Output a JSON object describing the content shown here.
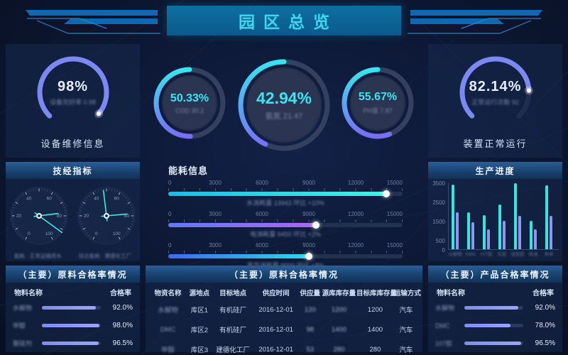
{
  "title": {
    "text": "园区总览"
  },
  "colors": {
    "accent_cyan": "#35e2ef",
    "accent_periwinkle": "#7d89f3",
    "banner_bg": "#0e6fa2",
    "banner_text": "#3ad9f0"
  },
  "left_top": {
    "value": "98%",
    "subtitle": "设备完好率 0.98",
    "caption": "设备维修信息",
    "percent": 98
  },
  "right_top": {
    "value": "82.14%",
    "subtitle": "正常运行次数 92",
    "caption": "装置正常运行",
    "percent": 82.14
  },
  "rings": [
    {
      "value": "50.33%",
      "subtitle": "COD 30.2",
      "percent": 50.33,
      "size": 104
    },
    {
      "value": "42.94%",
      "subtitle": "氨氮  21.47",
      "percent": 42.94,
      "size": 132
    },
    {
      "value": "55.67%",
      "subtitle": "PH值  7.87",
      "percent": 55.67,
      "size": 104
    }
  ],
  "tech_panel": {
    "title": "技经指标",
    "tick_labels": [
      0,
      20,
      40,
      60,
      80,
      100
    ],
    "gauges": [
      {
        "caption": "能耗 · 正常运输用水",
        "needles": [
          {
            "angle": 83,
            "len": 27
          },
          {
            "angle": 126,
            "len": 40
          }
        ]
      },
      {
        "caption": "综合能耗 · 建德化工厂",
        "needles": [
          {
            "angle": 353,
            "len": 36
          },
          {
            "angle": 85,
            "len": 29
          }
        ]
      }
    ]
  },
  "energy": {
    "title": "能耗信息",
    "scale": [
      "0",
      "3000",
      "6000",
      "9000",
      "12000",
      "15000"
    ],
    "bars": [
      {
        "percent": 93,
        "label": "水消耗量  13943   环比  +10%",
        "color": "cyan"
      },
      {
        "percent": 63,
        "label": "电消耗量  9450   环比  +2%",
        "color": "purple"
      },
      {
        "percent": 60,
        "label": "蒸汽消耗量  9000   环比  +8%",
        "color": "blue"
      }
    ]
  },
  "production": {
    "title": "生产进度"
  },
  "chart_data": {
    "type": "bar",
    "title": "生产进度",
    "categories": [
      "水解物",
      "DMC",
      "107胶",
      "生胶",
      "混炼胶",
      "硅油",
      "单体"
    ],
    "series": [
      {
        "name": "series-cyan",
        "color": "#35e6e0",
        "values": [
          3400,
          1950,
          1800,
          2350,
          3450,
          1500,
          3350
        ]
      },
      {
        "name": "series-purple",
        "color": "#8a97f7",
        "values": [
          1950,
          1400,
          1050,
          1500,
          1750,
          1050,
          1750
        ]
      }
    ],
    "ylim": [
      0,
      3500
    ],
    "yticks": [
      0,
      500,
      1500,
      2500,
      3500
    ],
    "xlabel": "",
    "ylabel": ""
  },
  "left_table": {
    "title": "（主要）原料合格率情况",
    "col_name": "物料名称",
    "col_rate": "合格率",
    "rows": [
      {
        "name": "水解物",
        "value": "92.0%",
        "percent": 92
      },
      {
        "name": "甲醇",
        "value": "98.0%",
        "percent": 98
      },
      {
        "name": "聚硅剂",
        "value": "96.5%",
        "percent": 96.5
      }
    ]
  },
  "right_table": {
    "title": "（主要）产品合格率情况",
    "col_name": "物料名称",
    "col_rate": "合格率",
    "rows": [
      {
        "name": "水解物",
        "value": "92.0%",
        "percent": 92
      },
      {
        "name": "DMC",
        "value": "78.0%",
        "percent": 78
      },
      {
        "name": "107胶",
        "value": "96.5%",
        "percent": 96.5
      }
    ]
  },
  "supply_table": {
    "title": "（主要）原料合格率情况",
    "headers": [
      "物资名称",
      "源地点",
      "目标地点",
      "供应时间",
      "供应量",
      "源库库存量",
      "目标库库存量",
      "运输方式"
    ],
    "rows": [
      [
        "水解物",
        "库区1",
        "有机硅厂",
        "2016-12-01",
        "120",
        "1200",
        "1200",
        "汽车"
      ],
      [
        "DMC",
        "库区2",
        "有机硅厂",
        "2016-12-01",
        "98",
        "1400",
        "1400",
        "汽车"
      ],
      [
        "甲醇",
        "库区3",
        "建德化工厂",
        "2016-12-01",
        "53",
        "280",
        "280",
        "汽车"
      ]
    ],
    "blur_cols": [
      0,
      4,
      5
    ]
  }
}
